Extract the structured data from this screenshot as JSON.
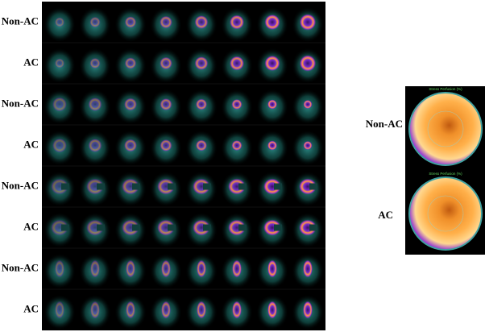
{
  "rows": [
    {
      "label": "Non-AC"
    },
    {
      "label": "AC"
    },
    {
      "label": "Non-AC"
    },
    {
      "label": "AC"
    },
    {
      "label": "Non-AC"
    },
    {
      "label": "AC"
    },
    {
      "label": "Non-AC"
    },
    {
      "label": "AC"
    }
  ],
  "polar_maps": [
    {
      "label": "Non-AC",
      "title": "Stress Perfusion (%)"
    },
    {
      "label": "AC",
      "title": "Stress Perfusion (%)"
    }
  ]
}
